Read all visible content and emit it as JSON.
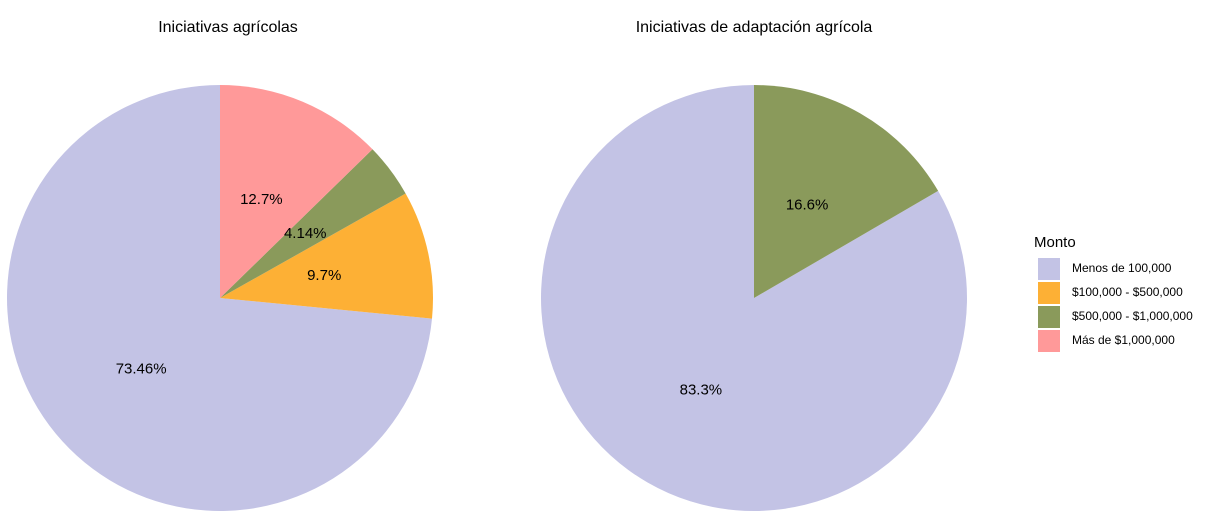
{
  "chart_data": [
    {
      "type": "pie",
      "title": "Iniciativas agrícolas",
      "values": [
        73.46,
        9.7,
        4.14,
        12.7
      ],
      "value_labels": [
        "73.46%",
        "9.7%",
        "4.14%",
        "12.7%"
      ]
    },
    {
      "type": "pie",
      "title": "Iniciativas de adaptación agrícola",
      "values": [
        83.3,
        null,
        16.6,
        null
      ],
      "value_labels": [
        "83.3%",
        null,
        "16.6%",
        null
      ]
    }
  ],
  "legend": {
    "title": "Monto",
    "labels": [
      "Menos de 100,000",
      "$100,000 - $500,000",
      "$500,000 - $1,000,000",
      "Más de $1,000,000"
    ],
    "colors": [
      "#c3c3e5",
      "#fdb035",
      "#8a9a5b",
      "#ff9999"
    ]
  }
}
